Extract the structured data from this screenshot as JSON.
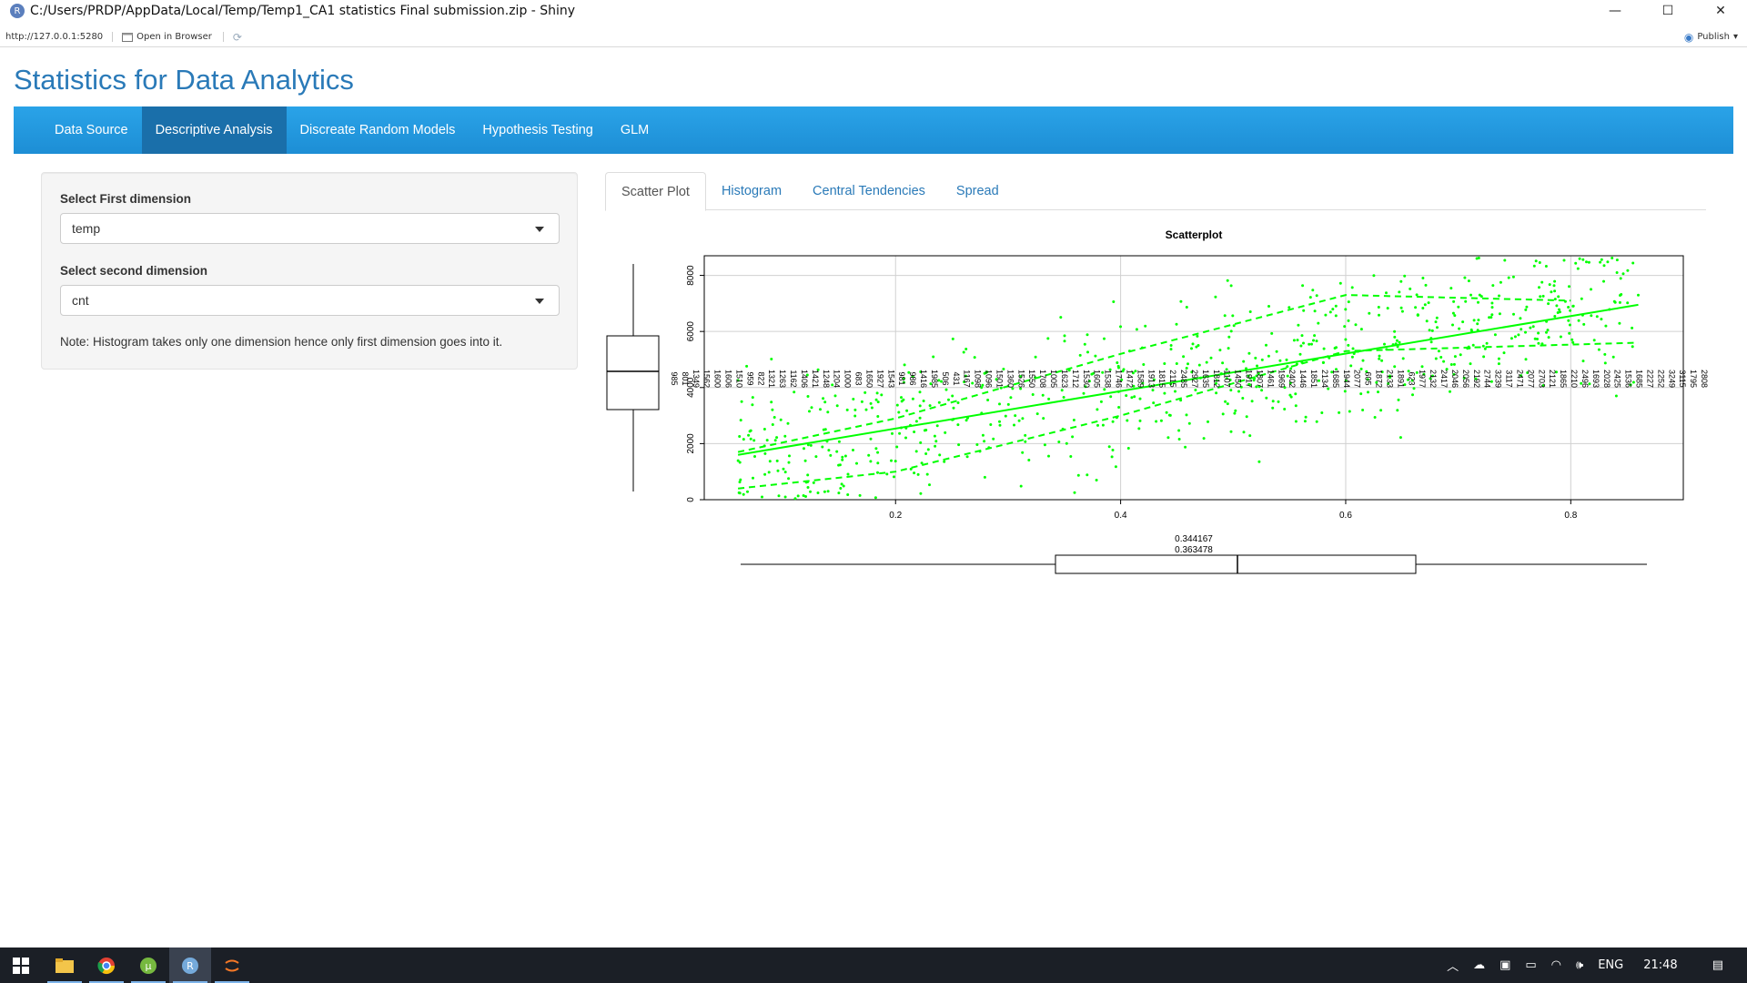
{
  "window": {
    "title": "C:/Users/PRDP/AppData/Local/Temp/Temp1_CA1 statistics Final submission.zip - Shiny",
    "app_icon_letter": "R",
    "minimize": "—",
    "maximize": "☐",
    "close": "✕"
  },
  "viewer": {
    "url": "http://127.0.0.1:5280",
    "open_in_browser": "Open in Browser",
    "publish": "Publish"
  },
  "app": {
    "title": "Statistics for Data Analytics",
    "nav": [
      {
        "label": "Data Source"
      },
      {
        "label": "Descriptive Analysis"
      },
      {
        "label": "Discreate Random Models"
      },
      {
        "label": "Hypothesis Testing"
      },
      {
        "label": "GLM"
      }
    ],
    "active_nav": "Descriptive Analysis",
    "sidebar": {
      "first_label": "Select First dimension",
      "first_value": "temp",
      "second_label": "Select second dimension",
      "second_value": "cnt",
      "note": "Note: Histogram takes only one dimension hence only first dimension goes into it."
    },
    "tabs": [
      {
        "label": "Scatter Plot"
      },
      {
        "label": "Histogram"
      },
      {
        "label": "Central Tendencies"
      },
      {
        "label": "Spread"
      }
    ],
    "active_tab": "Scatter Plot"
  },
  "chart_data": {
    "type": "scatter",
    "title": "Scatterplot",
    "xlabel": "",
    "ylabel": "",
    "xlim": [
      0.03,
      0.9
    ],
    "ylim": [
      0,
      8700
    ],
    "x_ticks": [
      "0.2",
      "0.4",
      "0.6",
      "0.8"
    ],
    "y_ticks": [
      "0",
      "2000",
      "4000",
      "6000",
      "8000"
    ],
    "grid": true,
    "point_color": "#00ff00",
    "regression_line": {
      "x": [
        0.06,
        0.86
      ],
      "y": [
        1600,
        6950
      ]
    },
    "smooth_upper": {
      "x": [
        0.06,
        0.2,
        0.4,
        0.6,
        0.8
      ],
      "y": [
        1700,
        2900,
        5200,
        7300,
        7100
      ]
    },
    "smooth_lower": {
      "x": [
        0.06,
        0.2,
        0.4,
        0.6,
        0.86
      ],
      "y": [
        400,
        1000,
        3000,
        5300,
        5600
      ]
    },
    "bottom_box_labels": [
      "0.344167",
      "0.363478"
    ],
    "side_labels": [
      "985",
      "801",
      "1349",
      "1562",
      "1600",
      "1606",
      "1510",
      "959",
      "822",
      "1321",
      "1263",
      "1162",
      "1406",
      "1421",
      "1248",
      "1204",
      "1000",
      "683",
      "1650",
      "1927",
      "1543",
      "981",
      "986",
      "1416",
      "1985",
      "506",
      "431",
      "1167",
      "1098",
      "1096",
      "1501",
      "1360",
      "1526",
      "1550",
      "1708",
      "1005",
      "1623",
      "1712",
      "1530",
      "1605",
      "1538",
      "1746",
      "1472",
      "1589",
      "1913",
      "1815",
      "2115",
      "2485",
      "2927",
      "1635",
      "1812",
      "1107",
      "1450",
      "1917",
      "1807",
      "1461",
      "1969",
      "2402",
      "1446",
      "1851",
      "2134",
      "1685",
      "1944",
      "2077",
      "605",
      "1872",
      "2133",
      "1891",
      "623",
      "1977",
      "2132",
      "2417",
      "2046",
      "2056",
      "2192",
      "2744",
      "3239",
      "3117",
      "2471",
      "2077",
      "2703",
      "2121",
      "1865",
      "2210",
      "2496",
      "1693",
      "2028",
      "2425",
      "1536",
      "1685",
      "2227",
      "2252",
      "3249",
      "3115",
      "1795",
      "2808"
    ]
  },
  "taskbar": {
    "apps": [
      {
        "name": "windows-start-icon"
      },
      {
        "name": "file-explorer-icon"
      },
      {
        "name": "chrome-icon"
      },
      {
        "name": "torrent-icon"
      },
      {
        "name": "rstudio-icon"
      },
      {
        "name": "jupyter-icon"
      }
    ],
    "lang": "ENG",
    "time": "21:48"
  }
}
